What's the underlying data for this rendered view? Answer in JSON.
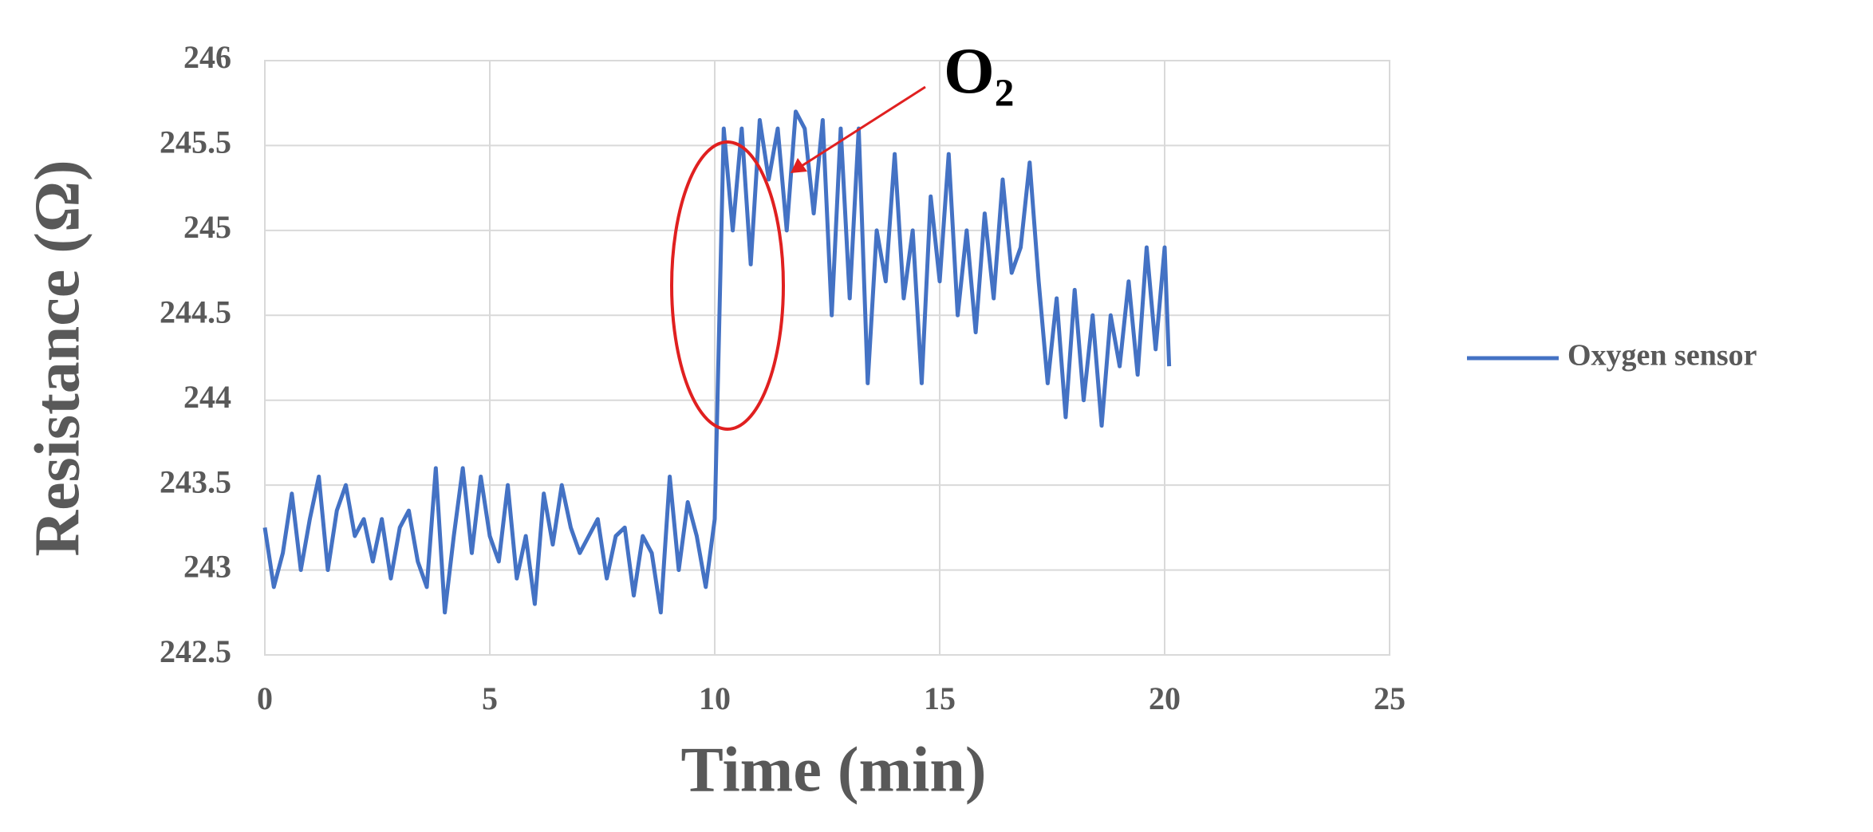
{
  "chart_data": {
    "type": "line",
    "x_label": "Time (min)",
    "y_label": "Resistance (Ω)",
    "annotation": "O₂",
    "x": [
      0,
      0.2,
      0.4,
      0.6,
      0.8,
      1.0,
      1.2,
      1.4,
      1.6,
      1.8,
      2.0,
      2.2,
      2.4,
      2.6,
      2.8,
      3.0,
      3.2,
      3.4,
      3.6,
      3.8,
      4.0,
      4.2,
      4.4,
      4.6,
      4.8,
      5.0,
      5.2,
      5.4,
      5.6,
      5.8,
      6.0,
      6.2,
      6.4,
      6.6,
      6.8,
      7.0,
      7.2,
      7.4,
      7.6,
      7.8,
      8.0,
      8.2,
      8.4,
      8.6,
      8.8,
      9.0,
      9.2,
      9.4,
      9.6,
      9.8,
      10.0,
      10.2,
      10.4,
      10.6,
      10.8,
      11.0,
      11.2,
      11.4,
      11.6,
      11.8,
      12.0,
      12.2,
      12.4,
      12.6,
      12.8,
      13.0,
      13.2,
      13.4,
      13.6,
      13.8,
      14.0,
      14.2,
      14.4,
      14.6,
      14.8,
      15.0,
      15.2,
      15.4,
      15.6,
      15.8,
      16.0,
      16.2,
      16.4,
      16.6,
      16.8,
      17.0,
      17.2,
      17.4,
      17.6,
      17.8,
      18.0,
      18.2,
      18.4,
      18.6,
      18.8,
      19.0,
      19.2,
      19.4,
      19.6,
      19.8,
      20.0,
      20.1
    ],
    "series": [
      {
        "name": "Oxygen sensor",
        "color": "#4472c4",
        "values": [
          243.25,
          242.9,
          243.1,
          243.45,
          243.0,
          243.3,
          243.55,
          243.0,
          243.35,
          243.5,
          243.2,
          243.3,
          243.05,
          243.3,
          242.95,
          243.25,
          243.35,
          243.05,
          242.9,
          243.6,
          242.75,
          243.2,
          243.6,
          243.1,
          243.55,
          243.2,
          243.05,
          243.5,
          242.95,
          243.2,
          242.8,
          243.45,
          243.15,
          243.5,
          243.25,
          243.1,
          243.2,
          243.3,
          242.95,
          243.2,
          243.25,
          242.85,
          243.2,
          243.1,
          242.75,
          243.55,
          243.0,
          243.4,
          243.2,
          242.9,
          243.3,
          245.6,
          245.0,
          245.6,
          244.8,
          245.65,
          245.3,
          245.6,
          245.0,
          245.7,
          245.6,
          245.1,
          245.65,
          244.5,
          245.6,
          244.6,
          245.6,
          244.1,
          245.0,
          244.7,
          245.45,
          244.6,
          245.0,
          244.1,
          245.2,
          244.7,
          245.45,
          244.5,
          245.0,
          244.4,
          245.1,
          244.6,
          245.3,
          244.75,
          244.9,
          245.4,
          244.7,
          244.1,
          244.6,
          243.9,
          244.65,
          244.0,
          244.5,
          243.85,
          244.5,
          244.2,
          244.7,
          244.15,
          244.9,
          244.3,
          244.9,
          244.2
        ]
      }
    ],
    "xlim": [
      0,
      25
    ],
    "xticks": [
      0,
      5,
      10,
      15,
      20,
      25
    ],
    "ylim": [
      242.5,
      246
    ],
    "yticks": [
      242.5,
      243,
      243.5,
      244,
      244.5,
      245,
      245.5,
      246
    ],
    "grid": true,
    "legend": "right"
  }
}
